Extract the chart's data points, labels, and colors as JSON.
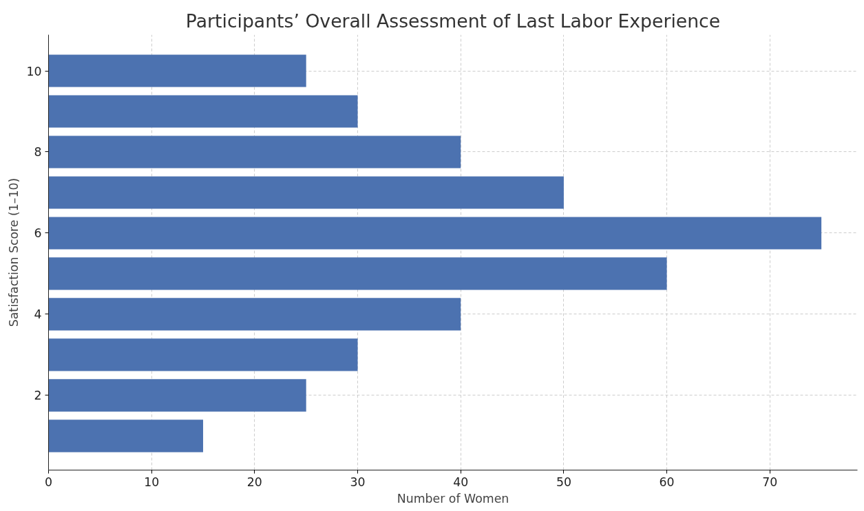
{
  "chart_data": {
    "type": "bar",
    "orientation": "horizontal",
    "title": "Participants’ Overall Assessment of Last Labor Experience",
    "xlabel": "Number of Women",
    "ylabel": "Satisfaction Score (1–10)",
    "x": [
      1,
      2,
      3,
      4,
      5,
      6,
      7,
      8,
      9,
      10
    ],
    "values": [
      15,
      25,
      30,
      40,
      60,
      75,
      50,
      40,
      30,
      25
    ],
    "color": "#4c72b0",
    "xlim": [
      0,
      78.5
    ],
    "xticks": [
      0,
      10,
      20,
      30,
      40,
      50,
      60,
      70
    ],
    "ylim": [
      0.16,
      10.89
    ],
    "yticks": [
      2,
      4,
      6,
      8,
      10
    ],
    "grid": true
  }
}
